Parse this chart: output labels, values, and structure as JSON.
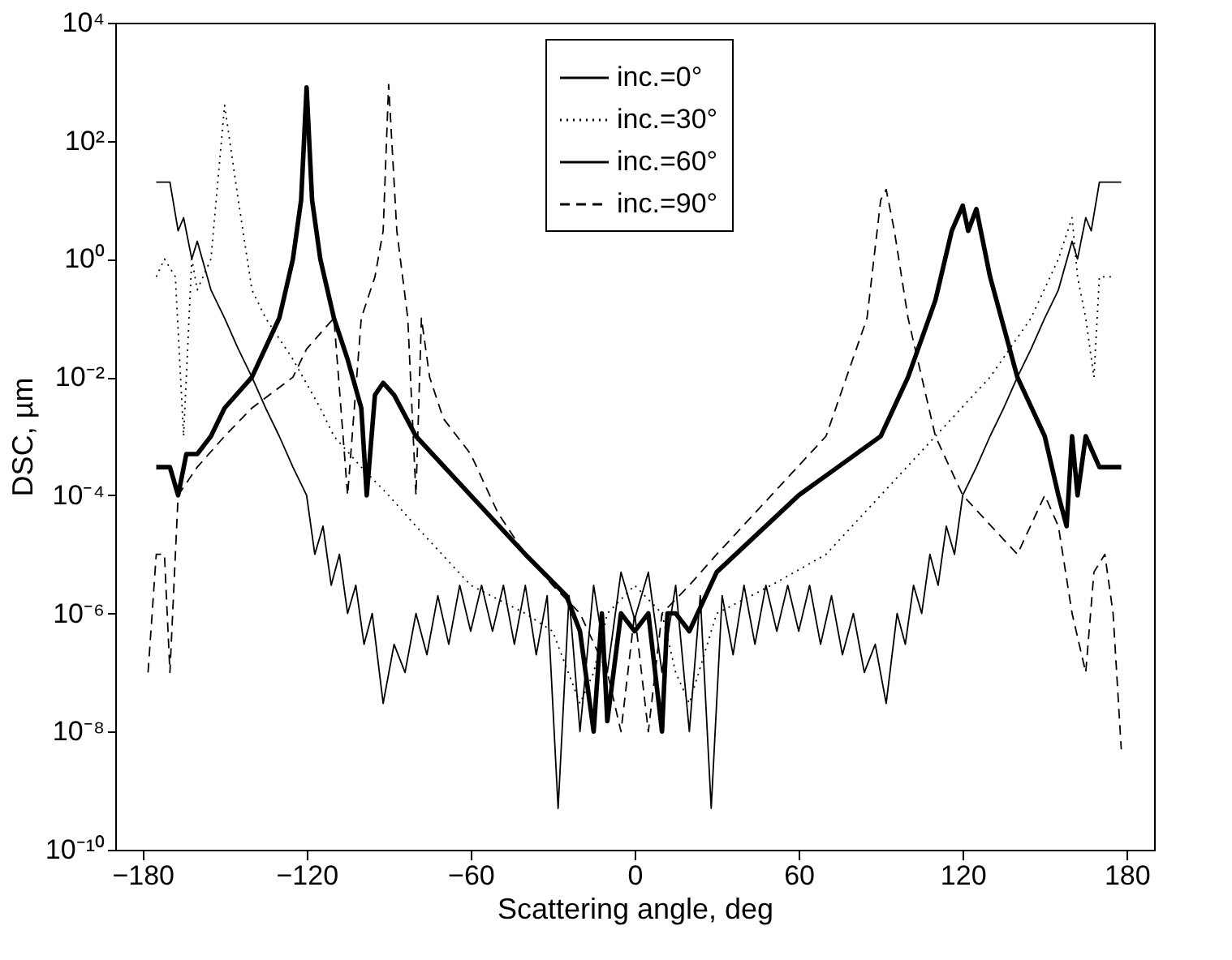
{
  "chart_data": {
    "type": "line",
    "xlabel": "Scattering angle, deg",
    "ylabel": "DSC, µm",
    "log": "y",
    "grid": false,
    "legend": "top",
    "marker": "none",
    "xlim": [
      -190,
      190
    ],
    "xticks": [
      -180,
      -120,
      -60,
      0,
      60,
      120,
      180
    ],
    "ylim": [
      1e-10,
      10000
    ],
    "yticks": [
      {
        "value": 1e-10,
        "label": "10⁻¹⁰"
      },
      {
        "value": 1e-08,
        "label": "10⁻⁸"
      },
      {
        "value": 1e-06,
        "label": "10⁻⁶"
      },
      {
        "value": 0.0001,
        "label": "10⁻⁴"
      },
      {
        "value": 0.01,
        "label": "10⁻²"
      },
      {
        "value": 1,
        "label": "10⁰"
      },
      {
        "value": 100,
        "label": "10²"
      },
      {
        "value": 10000,
        "label": "10⁴"
      }
    ],
    "series": [
      {
        "name": "inc.=0°",
        "color": "#000000",
        "line_style": "solid",
        "x": [
          -175,
          -170,
          -167,
          -165,
          -162,
          -160,
          -155,
          -150,
          -145,
          -140,
          -135,
          -130,
          -125,
          -120,
          -117,
          -114,
          -111,
          -108,
          -105,
          -102,
          -99,
          -96,
          -92,
          -88,
          -84,
          -80,
          -76,
          -72,
          -68,
          -64,
          -60,
          -56,
          -52,
          -48,
          -44,
          -40,
          -36,
          -32,
          -28,
          -24,
          -20,
          -15,
          -10,
          -5,
          0,
          5,
          10,
          15,
          20,
          24,
          28,
          32,
          36,
          40,
          44,
          48,
          52,
          56,
          60,
          64,
          68,
          72,
          76,
          80,
          84,
          88,
          92,
          96,
          99,
          102,
          105,
          108,
          111,
          114,
          117,
          120,
          125,
          130,
          135,
          140,
          145,
          150,
          155,
          160,
          162,
          165,
          167,
          170,
          175,
          178
        ],
        "values": [
          20,
          20,
          3,
          5,
          1,
          2,
          0.3,
          0.1,
          0.03,
          0.01,
          0.003,
          0.001,
          0.0003,
          0.0001,
          1e-05,
          3e-05,
          3e-06,
          1e-05,
          1e-06,
          3e-06,
          3e-07,
          1e-06,
          3e-08,
          3e-07,
          1e-07,
          1e-06,
          2e-07,
          2e-06,
          3e-07,
          3e-06,
          5e-07,
          3e-06,
          5e-07,
          3e-06,
          3e-07,
          3e-06,
          2e-07,
          2e-06,
          5e-10,
          2e-06,
          1e-08,
          3e-06,
          1e-07,
          5e-06,
          8e-07,
          5e-06,
          1e-07,
          3e-06,
          1e-08,
          2e-06,
          5e-10,
          2e-06,
          2e-07,
          3e-06,
          3e-07,
          3e-06,
          5e-07,
          3e-06,
          5e-07,
          3e-06,
          3e-07,
          2e-06,
          2e-07,
          1e-06,
          1e-07,
          3e-07,
          3e-08,
          1e-06,
          3e-07,
          3e-06,
          1e-06,
          1e-05,
          3e-06,
          3e-05,
          1e-05,
          0.0001,
          0.0003,
          0.001,
          0.003,
          0.01,
          0.03,
          0.1,
          0.3,
          2,
          1,
          5,
          3,
          20,
          20,
          20
        ]
      },
      {
        "name": "inc.=30°",
        "color": "#000000",
        "line_style": "dotted",
        "x": [
          -175,
          -172,
          -168,
          -165,
          -162,
          -160,
          -155,
          -150,
          -145,
          -140,
          -135,
          -125,
          -115,
          -110,
          -100,
          -90,
          -80,
          -60,
          -40,
          -30,
          -20,
          -15,
          -10,
          0,
          10,
          15,
          20,
          30,
          50,
          70,
          90,
          110,
          130,
          145,
          155,
          160,
          162,
          165,
          168,
          170,
          175
        ],
        "values": [
          0.5,
          1,
          0.5,
          0.001,
          1,
          0.3,
          1,
          400,
          10,
          0.3,
          0.1,
          0.02,
          0.003,
          0.001,
          0.0003,
          0.0001,
          3e-05,
          3e-06,
          1e-06,
          5e-07,
          3e-08,
          1e-07,
          1e-06,
          3e-06,
          1e-06,
          1e-07,
          3e-08,
          1e-06,
          3e-06,
          1e-05,
          0.0001,
          0.001,
          0.01,
          0.1,
          1,
          5,
          0.5,
          0.1,
          0.01,
          0.5,
          0.5
        ]
      },
      {
        "name": "inc.=60°",
        "color": "#000000",
        "line_style": "solid",
        "x": [
          -175,
          -170,
          -167,
          -164,
          -160,
          -155,
          -150,
          -140,
          -130,
          -125,
          -122,
          -120,
          -118,
          -115,
          -110,
          -105,
          -100,
          -98,
          -95,
          -92,
          -88,
          -80,
          -60,
          -40,
          -25,
          -20,
          -15,
          -12,
          -10,
          -5,
          0,
          5,
          10,
          12,
          15,
          20,
          30,
          60,
          90,
          100,
          110,
          116,
          120,
          122,
          125,
          130,
          140,
          150,
          155,
          158,
          160,
          162,
          165,
          170,
          175,
          178
        ],
        "values": [
          0.0003,
          0.0003,
          0.0001,
          0.0005,
          0.0005,
          0.001,
          0.003,
          0.01,
          0.1,
          1,
          10,
          800,
          10,
          1,
          0.1,
          0.02,
          0.003,
          0.0001,
          0.005,
          0.008,
          0.005,
          0.001,
          0.0001,
          1e-05,
          2e-06,
          5e-07,
          1e-08,
          1e-06,
          1.5e-08,
          1e-06,
          5e-07,
          1e-06,
          1e-08,
          1e-06,
          1e-06,
          5e-07,
          5e-06,
          0.0001,
          0.001,
          0.01,
          0.2,
          3,
          8,
          3,
          7,
          0.5,
          0.01,
          0.001,
          0.0001,
          3e-05,
          0.001,
          0.0001,
          0.001,
          0.0003,
          0.0003,
          0.0003
        ]
      },
      {
        "name": "inc.=90°",
        "color": "#000000",
        "line_style": "dashed",
        "x": [
          -178,
          -175,
          -172,
          -170,
          -167,
          -160,
          -150,
          -140,
          -125,
          -120,
          -110,
          -105,
          -100,
          -95,
          -92,
          -90,
          -87,
          -83,
          -80,
          -78,
          -75,
          -70,
          -60,
          -50,
          -40,
          -30,
          -20,
          -10,
          -5,
          0,
          5,
          10,
          20,
          30,
          50,
          70,
          85,
          90,
          92,
          95,
          100,
          110,
          120,
          140,
          150,
          155,
          160,
          165,
          168,
          172,
          175,
          178
        ],
        "values": [
          1e-07,
          1e-05,
          1e-05,
          1e-07,
          0.0001,
          0.0003,
          0.001,
          0.003,
          0.01,
          0.03,
          0.1,
          0.0001,
          0.1,
          0.5,
          3,
          900,
          3,
          0.1,
          0.0001,
          0.1,
          0.01,
          0.002,
          0.0005,
          5e-05,
          1e-05,
          3e-06,
          1e-06,
          1e-07,
          1e-08,
          1e-06,
          1e-08,
          1e-06,
          3e-06,
          1e-05,
          0.0001,
          0.001,
          0.1,
          10,
          15,
          3,
          0.1,
          0.001,
          0.0001,
          1e-05,
          0.0001,
          3e-05,
          1e-06,
          1e-07,
          5e-06,
          1e-05,
          1e-06,
          5e-09
        ]
      }
    ]
  }
}
